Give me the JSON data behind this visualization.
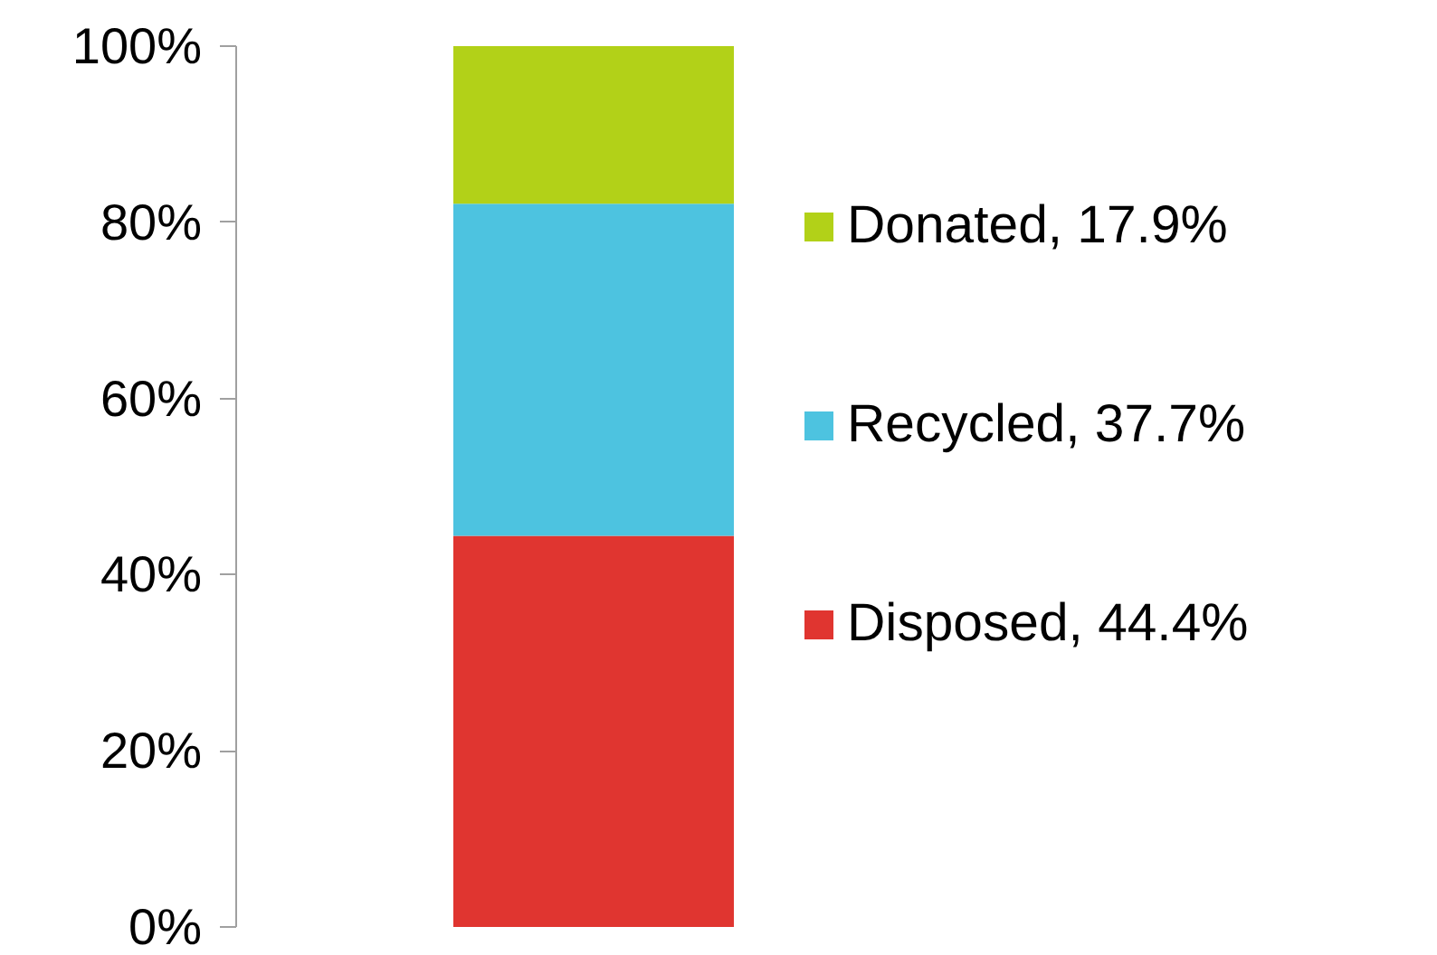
{
  "chart_data": {
    "type": "bar",
    "stacked": true,
    "categories": [
      null
    ],
    "series": [
      {
        "name": "Disposed, 44.4%",
        "color": "#e03530",
        "values": [
          44.4
        ]
      },
      {
        "name": "Recycled, 37.7%",
        "color": "#4dc3e0",
        "values": [
          37.7
        ]
      },
      {
        "name": "Donated, 17.9%",
        "color": "#b2d118",
        "values": [
          17.9
        ]
      }
    ],
    "ylim": [
      0,
      100
    ],
    "yticks": [
      {
        "value": 0,
        "label": "0%"
      },
      {
        "value": 20,
        "label": "20%"
      },
      {
        "value": 40,
        "label": "40%"
      },
      {
        "value": 60,
        "label": "60%"
      },
      {
        "value": 80,
        "label": "80%"
      },
      {
        "value": 100,
        "label": "100%"
      }
    ],
    "grid": false,
    "legend": "right",
    "tick_labels": "y"
  }
}
